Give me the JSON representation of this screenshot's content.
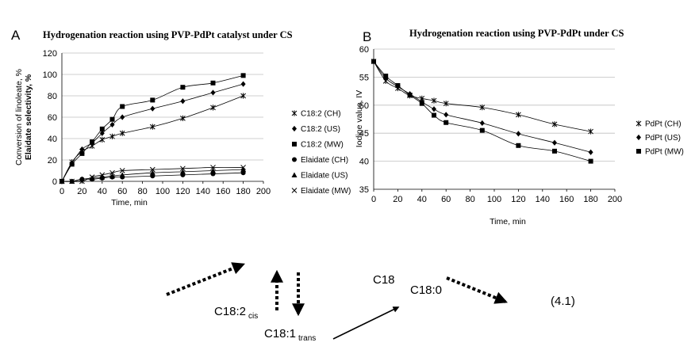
{
  "chart_data": [
    {
      "type": "scatter",
      "panel_label": "A",
      "title": "Hydrogenation reaction using PVP-PdPt catalyst under CS",
      "xlabel": "Time, min",
      "ylabel": [
        "Conversion of linoleate, %",
        "Elaidate selectivity, %"
      ],
      "xlim": [
        0,
        200
      ],
      "ylim": [
        0,
        120
      ],
      "xticks": [
        0,
        20,
        40,
        60,
        80,
        100,
        120,
        140,
        160,
        180,
        200
      ],
      "yticks": [
        0,
        20,
        40,
        60,
        80,
        100,
        120
      ],
      "grid": "horizontal",
      "legend_position": "right",
      "series": [
        {
          "name": "C18:2 (CH)",
          "marker": "asterisk",
          "x": [
            0,
            10,
            20,
            30,
            40,
            50,
            60,
            90,
            120,
            150,
            180
          ],
          "y": [
            0,
            18,
            28,
            33,
            39,
            42,
            45,
            51,
            59,
            69,
            80
          ]
        },
        {
          "name": "C18:2 (US)",
          "marker": "diamond",
          "x": [
            0,
            10,
            20,
            30,
            40,
            50,
            60,
            90,
            120,
            150,
            180
          ],
          "y": [
            0,
            17,
            30,
            36,
            45,
            53,
            60,
            68,
            75,
            83,
            91
          ]
        },
        {
          "name": "C18:2 (MW)",
          "marker": "square",
          "x": [
            0,
            10,
            20,
            30,
            40,
            50,
            60,
            90,
            120,
            150,
            180
          ],
          "y": [
            0,
            16,
            26,
            37,
            49,
            58,
            70,
            76,
            88,
            92,
            99
          ]
        },
        {
          "name": "Elaidate (CH)",
          "marker": "circle",
          "x": [
            0,
            10,
            20,
            30,
            40,
            50,
            60,
            90,
            120,
            150,
            180
          ],
          "y": [
            0,
            0,
            2,
            2,
            3,
            4,
            4,
            5,
            6,
            7,
            8
          ]
        },
        {
          "name": "Elaidate (US)",
          "marker": "triangle",
          "x": [
            0,
            10,
            20,
            30,
            40,
            50,
            60,
            90,
            120,
            150,
            180
          ],
          "y": [
            0,
            0,
            2,
            3,
            4,
            5,
            6,
            8,
            9,
            10,
            11
          ]
        },
        {
          "name": "Elaidate (MW)",
          "marker": "x",
          "x": [
            0,
            10,
            20,
            30,
            40,
            50,
            60,
            90,
            120,
            150,
            180
          ],
          "y": [
            0,
            0,
            0,
            4,
            6,
            8,
            10,
            11,
            12,
            13,
            13
          ]
        }
      ]
    },
    {
      "type": "scatter",
      "panel_label": "B",
      "title": "Hydrogenation reaction using PVP-PdPt under CS",
      "xlabel": "Time, min",
      "ylabel": "Iodine value, IV",
      "xlim": [
        0,
        200
      ],
      "ylim": [
        35,
        60
      ],
      "xticks": [
        0,
        20,
        40,
        60,
        80,
        100,
        120,
        140,
        160,
        180,
        200
      ],
      "yticks": [
        35,
        40,
        45,
        50,
        55,
        60
      ],
      "grid": "horizontal",
      "legend_position": "right",
      "series": [
        {
          "name": "PdPt (CH)",
          "marker": "asterisk",
          "x": [
            0,
            10,
            20,
            30,
            40,
            50,
            60,
            90,
            120,
            150,
            180
          ],
          "y": [
            57.8,
            54.3,
            53.0,
            51.7,
            51.2,
            50.8,
            50.3,
            49.6,
            48.3,
            46.6,
            45.3
          ]
        },
        {
          "name": "PdPt (US)",
          "marker": "diamond",
          "x": [
            0,
            10,
            20,
            30,
            40,
            50,
            60,
            90,
            120,
            150,
            180
          ],
          "y": [
            57.8,
            54.8,
            53.3,
            52.0,
            50.6,
            49.3,
            48.3,
            46.8,
            44.9,
            43.3,
            41.6
          ]
        },
        {
          "name": "PdPt (MW)",
          "marker": "square",
          "x": [
            0,
            10,
            20,
            30,
            40,
            50,
            60,
            90,
            120,
            150,
            180
          ],
          "y": [
            57.8,
            55.2,
            53.5,
            51.8,
            50.3,
            48.2,
            46.9,
            45.5,
            42.8,
            41.8,
            40.0
          ]
        }
      ]
    }
  ],
  "scheme": {
    "c18_2_cis_main": "C18:2",
    "c18_2_cis_sub": "cis",
    "c18_1_trans_main": "C18:1",
    "c18_1_trans_sub": "trans",
    "c18": "C18",
    "c18_0": "C18:0",
    "equation_number": "(4.1)"
  }
}
